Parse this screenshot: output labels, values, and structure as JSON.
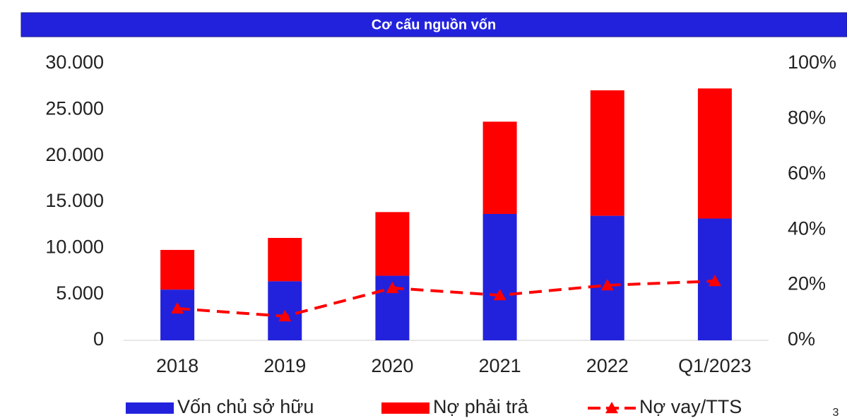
{
  "chart_data": {
    "type": "bar",
    "stacked": true,
    "title": "Cơ cấu nguồn vốn",
    "categories": [
      "2018",
      "2019",
      "2020",
      "2021",
      "2022",
      "Q1/2023"
    ],
    "series": [
      {
        "name": "Vốn chủ sở hữu",
        "type": "bar",
        "color": "#2222dd",
        "values": [
          5500,
          6400,
          7000,
          13700,
          13500,
          13200
        ]
      },
      {
        "name": "Nợ phải trả",
        "type": "bar",
        "color": "#ff0000",
        "values": [
          4300,
          4700,
          6900,
          10000,
          13600,
          14100
        ]
      },
      {
        "name": "Nợ vay/TTS",
        "type": "line",
        "axis": "y2",
        "color": "#ff0000",
        "dashed": true,
        "marker": "triangle",
        "values": [
          11.5,
          8.7,
          18.9,
          16.3,
          19.9,
          21.4
        ]
      }
    ],
    "ylim": [
      0,
      30000
    ],
    "yticks": [
      0,
      {
        "value": 5000,
        "label": "5.000"
      },
      {
        "value": 10000,
        "label": "10.000"
      },
      {
        "value": 15000,
        "label": "15.000"
      },
      {
        "value": 20000,
        "label": "20.000"
      },
      {
        "value": 25000,
        "label": "25.000"
      },
      {
        "value": 30000,
        "label": "30.000"
      }
    ],
    "y2lim": [
      0,
      100
    ],
    "y2ticks": [
      {
        "value": 0,
        "label": "0%"
      },
      {
        "value": 20,
        "label": "20%"
      },
      {
        "value": 40,
        "label": "40%"
      },
      {
        "value": 60,
        "label": "60%"
      },
      {
        "value": 80,
        "label": "80%"
      },
      {
        "value": 100,
        "label": "100%"
      }
    ],
    "grid": false,
    "legend": "bottom"
  },
  "page_number": "3"
}
